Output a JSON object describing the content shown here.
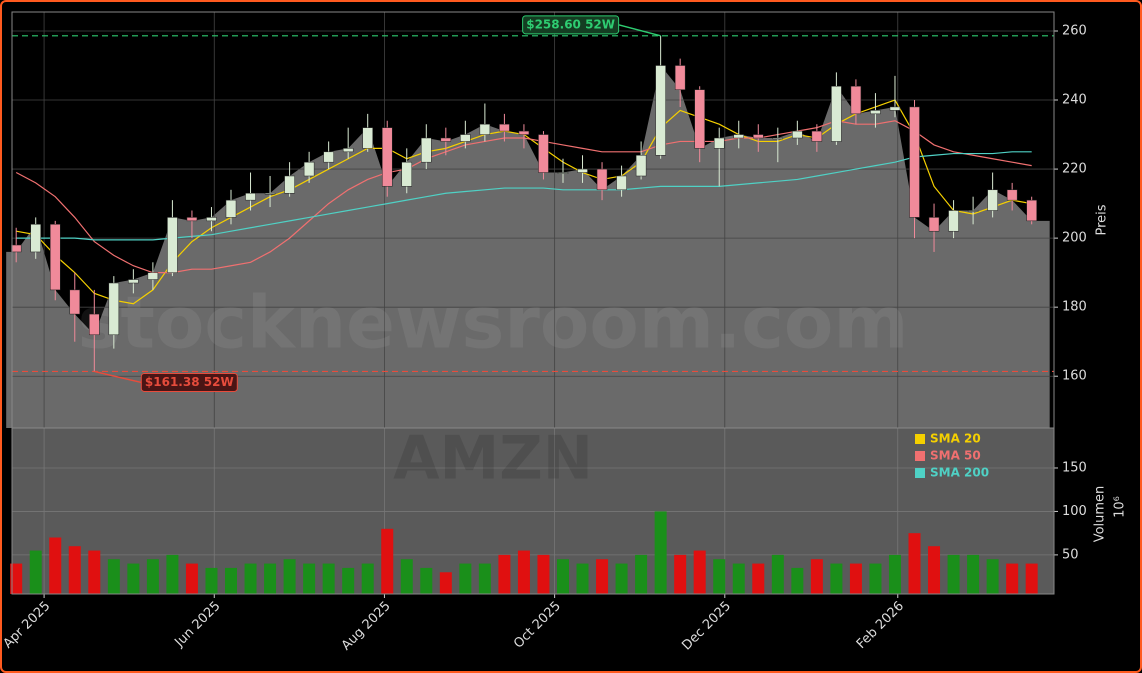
{
  "chart_data": [
    {
      "type": "candlestick",
      "watermark": "stocknewsroom.com",
      "ylabel": "Preis",
      "x": [
        -10,
        -3,
        4,
        11,
        18,
        25,
        32,
        39,
        46,
        53,
        60,
        67,
        74,
        81,
        88,
        95,
        102,
        109,
        116,
        123,
        130,
        137,
        144,
        151,
        158,
        165,
        172,
        179,
        186,
        193,
        200,
        207,
        214,
        221,
        228,
        235,
        242,
        249,
        256,
        263,
        270,
        277,
        284,
        291,
        298,
        305,
        312,
        319,
        326,
        333,
        340,
        347,
        354
      ],
      "open": [
        198,
        196,
        204,
        185,
        178,
        172,
        187,
        188,
        190,
        206,
        205,
        206,
        211,
        213,
        213,
        218,
        222,
        225,
        226,
        232,
        215,
        222,
        229,
        228,
        230,
        233,
        231,
        230,
        219,
        219,
        220,
        214,
        218,
        224,
        250,
        243,
        226,
        229,
        230,
        229,
        229,
        231,
        228,
        244,
        236,
        237,
        238,
        206,
        202,
        208,
        208,
        214,
        211
      ],
      "high": [
        203,
        206,
        205,
        190,
        185,
        189,
        191,
        193,
        211,
        208,
        209,
        214,
        219,
        218,
        222,
        225,
        228,
        232,
        236,
        234,
        226,
        233,
        232,
        234,
        239,
        236,
        233,
        231,
        223,
        224,
        222,
        221,
        228,
        258.6,
        252,
        244,
        232,
        234,
        233,
        232,
        234,
        233,
        248,
        246,
        242,
        247,
        240,
        210,
        211,
        212,
        219,
        216,
        212
      ],
      "low": [
        193,
        194,
        182,
        170,
        161.38,
        168,
        184,
        185,
        189,
        200,
        202,
        204,
        208,
        209,
        212,
        216,
        220,
        223,
        225,
        212,
        213,
        220,
        224,
        226,
        228,
        228,
        226,
        217,
        216,
        216,
        211,
        212,
        217,
        223,
        238,
        222,
        215,
        226,
        225,
        222,
        227,
        225,
        227,
        233,
        232,
        235,
        200,
        196,
        200,
        204,
        206,
        208,
        204
      ],
      "close": [
        196,
        204,
        185,
        178,
        172,
        187,
        188,
        190,
        206,
        205,
        206,
        211,
        213,
        213,
        218,
        222,
        225,
        226,
        232,
        215,
        222,
        229,
        228,
        230,
        233,
        231,
        230,
        219,
        219,
        220,
        214,
        218,
        224,
        250,
        243,
        226,
        229,
        230,
        229,
        229,
        231,
        228,
        244,
        236,
        237,
        238,
        206,
        202,
        208,
        208,
        214,
        211,
        205
      ],
      "up_color": "#d9ead3",
      "down_color": "#f08a9a",
      "area_color": "#6a6a6a",
      "series": [
        {
          "name": "SMA 20",
          "color": "#f5d000",
          "values": [
            202,
            201,
            195,
            190,
            184,
            182,
            181,
            185,
            193,
            199,
            203,
            206,
            209,
            212,
            214,
            217,
            220,
            223,
            226,
            226,
            223,
            225,
            226,
            228,
            230,
            231,
            230,
            226,
            222,
            219,
            217,
            218,
            222,
            232,
            237,
            235,
            233,
            230,
            228,
            228,
            230,
            229,
            233,
            236,
            238,
            240,
            230,
            215,
            208,
            207,
            209,
            211,
            210
          ]
        },
        {
          "name": "SMA 50",
          "color": "#f07070",
          "values": [
            219,
            216,
            212,
            206,
            199,
            195,
            192,
            190,
            190,
            191,
            191,
            192,
            193,
            196,
            200,
            205,
            210,
            214,
            217,
            219,
            220,
            223,
            225,
            227,
            228,
            229,
            229,
            228,
            227,
            226,
            225,
            225,
            225,
            227,
            228,
            228,
            228,
            229,
            229,
            230,
            231,
            232,
            234,
            233,
            233,
            234,
            231,
            227,
            225,
            224,
            223,
            222,
            221
          ]
        },
        {
          "name": "SMA 200",
          "color": "#4fd1c5",
          "values": [
            200,
            200,
            200,
            200,
            199.5,
            199.5,
            199.5,
            199.5,
            200,
            200.5,
            201,
            202,
            203,
            204,
            205,
            206,
            207,
            208,
            209,
            210,
            211,
            212,
            213,
            213.5,
            214,
            214.5,
            214.5,
            214.5,
            214,
            214,
            214,
            214,
            214.5,
            215,
            215,
            215,
            215,
            215.5,
            216,
            216.5,
            217,
            218,
            219,
            220,
            221,
            222,
            223.5,
            224,
            224.5,
            224.5,
            224.5,
            225,
            225
          ]
        }
      ],
      "annotations": [
        {
          "label": "$258.60 52W",
          "value": 258.6,
          "color": "#2ecc71"
        },
        {
          "label": "$161.38 52W",
          "value": 161.38,
          "color": "#e74c3c"
        }
      ],
      "xlim": [
        -11.5,
        362
      ],
      "ylim": [
        145,
        265.5
      ],
      "yticks": [
        160,
        180,
        200,
        220,
        240,
        260
      ],
      "grid": true
    },
    {
      "type": "bar",
      "watermark": "AMZN",
      "ylabel": "Volumen",
      "offset_label": "10⁶",
      "x": [
        -10,
        -3,
        4,
        11,
        18,
        25,
        32,
        39,
        46,
        53,
        60,
        67,
        74,
        81,
        88,
        95,
        102,
        109,
        116,
        123,
        130,
        137,
        144,
        151,
        158,
        165,
        172,
        179,
        186,
        193,
        200,
        207,
        214,
        221,
        228,
        235,
        242,
        249,
        256,
        263,
        270,
        277,
        284,
        291,
        298,
        305,
        312,
        319,
        326,
        333,
        340,
        347,
        354
      ],
      "values": [
        40,
        55,
        70,
        60,
        55,
        45,
        40,
        45,
        50,
        40,
        35,
        35,
        40,
        40,
        45,
        40,
        40,
        35,
        40,
        80,
        45,
        35,
        30,
        40,
        40,
        50,
        55,
        50,
        45,
        40,
        45,
        40,
        50,
        100,
        50,
        55,
        45,
        40,
        40,
        50,
        35,
        45,
        40,
        40,
        40,
        50,
        75,
        60,
        50,
        50,
        45,
        40,
        40
      ],
      "up_color": "#1a8f1a",
      "down_color": "#e01010",
      "background": "#5a5a5a",
      "xlim": [
        -11.5,
        362
      ],
      "ylim": [
        5,
        196
      ],
      "yticks": [
        50,
        100,
        150
      ],
      "xticks": [
        {
          "value": 0,
          "label": "Apr 2025"
        },
        {
          "value": 61,
          "label": "Jun 2025"
        },
        {
          "value": 122,
          "label": "Aug 2025"
        },
        {
          "value": 183,
          "label": "Oct 2025"
        },
        {
          "value": 244,
          "label": "Dec 2025"
        },
        {
          "value": 306,
          "label": "Feb 2026"
        }
      ],
      "grid": true
    }
  ]
}
